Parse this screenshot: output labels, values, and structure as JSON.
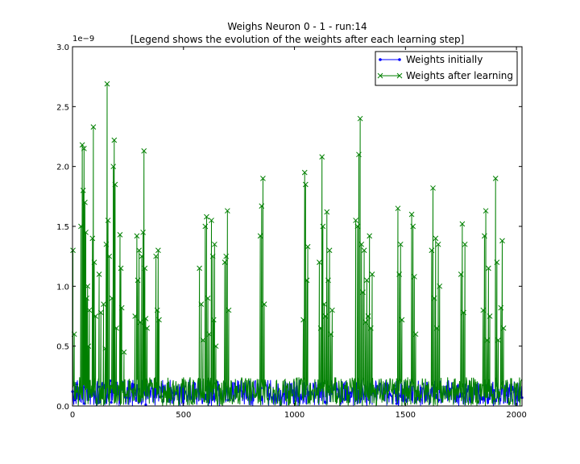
{
  "chart_data": {
    "type": "line",
    "title": "Weighs Neuron 0 - 1 - run:14",
    "subtitle": "[Legend shows the evolution of the weights after each learning step]",
    "xlabel": "",
    "ylabel": "",
    "y_offset_label": "1e−9",
    "xlim": [
      0,
      2025
    ],
    "ylim": [
      0.0,
      3.0
    ],
    "x_ticks": [
      0,
      500,
      1000,
      1500,
      2000
    ],
    "x_tick_labels": [
      "0",
      "500",
      "1000",
      "1500",
      "2000"
    ],
    "y_ticks": [
      0.0,
      0.5,
      1.0,
      1.5,
      2.0,
      2.5,
      3.0
    ],
    "y_tick_labels": [
      "0.0",
      "0.5",
      "1.0",
      "1.5",
      "2.0",
      "2.5",
      "3.0"
    ],
    "grid": false,
    "legend_position": "top-right",
    "series": [
      {
        "name": "Weights initially",
        "color": "#0000ff",
        "marker": "dot",
        "baseline_range": [
          0.0,
          0.22
        ],
        "values": [
          [
            0,
            0.12
          ],
          [
            10,
            0.05
          ],
          [
            20,
            0.18
          ],
          [
            30,
            0.08
          ],
          [
            40,
            0.15
          ],
          [
            50,
            0.22
          ],
          [
            55,
            0.02
          ],
          [
            60,
            0.19
          ],
          [
            70,
            0.06
          ],
          [
            80,
            0.13
          ],
          [
            100,
            0.09
          ],
          [
            120,
            0.16
          ],
          [
            150,
            0.04
          ],
          [
            170,
            0.21
          ],
          [
            175,
            0.03
          ],
          [
            180,
            0.17
          ],
          [
            200,
            0.1
          ],
          [
            250,
            0.07
          ],
          [
            300,
            0.14
          ],
          [
            330,
            0.01
          ],
          [
            350,
            0.12
          ],
          [
            400,
            0.08
          ],
          [
            450,
            0.11
          ],
          [
            500,
            0.06
          ],
          [
            550,
            0.13
          ],
          [
            600,
            0.09
          ],
          [
            650,
            0.2
          ],
          [
            700,
            0.05
          ],
          [
            750,
            0.12
          ],
          [
            800,
            0.08
          ],
          [
            850,
            0.15
          ],
          [
            900,
            0.07
          ],
          [
            950,
            0.1
          ],
          [
            1000,
            0.04
          ],
          [
            1050,
            0.14
          ],
          [
            1130,
            0.19
          ],
          [
            1140,
            0.03
          ],
          [
            1150,
            0.16
          ],
          [
            1200,
            0.08
          ],
          [
            1250,
            0.11
          ],
          [
            1300,
            0.06
          ],
          [
            1350,
            0.13
          ],
          [
            1400,
            0.09
          ],
          [
            1450,
            0.17
          ],
          [
            1460,
            0.02
          ],
          [
            1500,
            0.12
          ],
          [
            1550,
            0.07
          ],
          [
            1600,
            0.1
          ],
          [
            1650,
            0.05
          ],
          [
            1700,
            0.14
          ],
          [
            1750,
            0.08
          ],
          [
            1800,
            0.11
          ],
          [
            1850,
            0.06
          ],
          [
            1900,
            0.13
          ],
          [
            1950,
            0.09
          ],
          [
            2000,
            0.12
          ],
          [
            2025,
            0.07
          ]
        ]
      },
      {
        "name": "Weights after learning",
        "color": "#007f00",
        "marker": "x",
        "baseline_range": [
          0.0,
          0.24
        ],
        "values": [
          [
            2,
            1.3
          ],
          [
            8,
            0.6
          ],
          [
            38,
            1.5
          ],
          [
            44,
            2.18
          ],
          [
            48,
            1.8
          ],
          [
            52,
            2.15
          ],
          [
            56,
            1.7
          ],
          [
            60,
            1.45
          ],
          [
            64,
            0.9
          ],
          [
            68,
            1.0
          ],
          [
            72,
            0.5
          ],
          [
            76,
            0.8
          ],
          [
            90,
            1.4
          ],
          [
            94,
            2.33
          ],
          [
            98,
            1.2
          ],
          [
            104,
            0.75
          ],
          [
            120,
            1.1
          ],
          [
            128,
            0.78
          ],
          [
            140,
            0.85
          ],
          [
            148,
            0.48
          ],
          [
            152,
            1.35
          ],
          [
            156,
            2.69
          ],
          [
            160,
            1.55
          ],
          [
            166,
            1.25
          ],
          [
            178,
            0.9
          ],
          [
            184,
            2.0
          ],
          [
            188,
            2.22
          ],
          [
            192,
            1.85
          ],
          [
            198,
            0.65
          ],
          [
            214,
            1.43
          ],
          [
            218,
            1.15
          ],
          [
            222,
            0.82
          ],
          [
            232,
            0.45
          ],
          [
            282,
            0.75
          ],
          [
            290,
            1.42
          ],
          [
            294,
            1.05
          ],
          [
            300,
            1.3
          ],
          [
            306,
            0.7
          ],
          [
            312,
            1.25
          ],
          [
            318,
            1.45
          ],
          [
            322,
            2.13
          ],
          [
            326,
            1.15
          ],
          [
            330,
            0.73
          ],
          [
            336,
            0.65
          ],
          [
            376,
            1.25
          ],
          [
            382,
            0.8
          ],
          [
            386,
            1.3
          ],
          [
            390,
            0.72
          ],
          [
            572,
            1.15
          ],
          [
            580,
            0.85
          ],
          [
            588,
            0.55
          ],
          [
            598,
            1.5
          ],
          [
            604,
            1.58
          ],
          [
            610,
            0.9
          ],
          [
            616,
            0.6
          ],
          [
            626,
            1.55
          ],
          [
            632,
            1.25
          ],
          [
            636,
            0.72
          ],
          [
            640,
            1.35
          ],
          [
            646,
            0.5
          ],
          [
            686,
            1.2
          ],
          [
            692,
            1.25
          ],
          [
            698,
            1.63
          ],
          [
            704,
            0.8
          ],
          [
            846,
            1.42
          ],
          [
            852,
            1.67
          ],
          [
            858,
            1.9
          ],
          [
            864,
            0.85
          ],
          [
            1040,
            0.72
          ],
          [
            1046,
            1.95
          ],
          [
            1050,
            1.85
          ],
          [
            1056,
            1.05
          ],
          [
            1060,
            1.33
          ],
          [
            1112,
            1.2
          ],
          [
            1118,
            0.65
          ],
          [
            1124,
            2.08
          ],
          [
            1128,
            1.5
          ],
          [
            1134,
            0.85
          ],
          [
            1140,
            0.75
          ],
          [
            1146,
            1.62
          ],
          [
            1152,
            1.05
          ],
          [
            1158,
            1.3
          ],
          [
            1164,
            0.6
          ],
          [
            1170,
            0.8
          ],
          [
            1276,
            1.55
          ],
          [
            1284,
            1.5
          ],
          [
            1290,
            2.1
          ],
          [
            1296,
            2.4
          ],
          [
            1302,
            1.35
          ],
          [
            1308,
            0.95
          ],
          [
            1314,
            1.3
          ],
          [
            1320,
            0.7
          ],
          [
            1326,
            1.05
          ],
          [
            1332,
            0.75
          ],
          [
            1338,
            1.42
          ],
          [
            1344,
            0.65
          ],
          [
            1350,
            1.1
          ],
          [
            1466,
            1.65
          ],
          [
            1472,
            1.1
          ],
          [
            1478,
            1.35
          ],
          [
            1484,
            0.72
          ],
          [
            1528,
            1.6
          ],
          [
            1534,
            1.5
          ],
          [
            1540,
            1.08
          ],
          [
            1546,
            0.6
          ],
          [
            1618,
            1.3
          ],
          [
            1624,
            1.82
          ],
          [
            1630,
            0.9
          ],
          [
            1636,
            1.4
          ],
          [
            1642,
            0.65
          ],
          [
            1648,
            1.35
          ],
          [
            1654,
            1.0
          ],
          [
            1750,
            1.1
          ],
          [
            1756,
            1.52
          ],
          [
            1762,
            0.78
          ],
          [
            1768,
            1.35
          ],
          [
            1850,
            0.8
          ],
          [
            1856,
            1.42
          ],
          [
            1862,
            1.63
          ],
          [
            1868,
            0.55
          ],
          [
            1874,
            1.15
          ],
          [
            1880,
            0.75
          ],
          [
            1906,
            1.9
          ],
          [
            1912,
            1.2
          ],
          [
            1918,
            0.55
          ],
          [
            1930,
            0.82
          ],
          [
            1936,
            1.38
          ],
          [
            1942,
            0.65
          ]
        ]
      }
    ]
  }
}
